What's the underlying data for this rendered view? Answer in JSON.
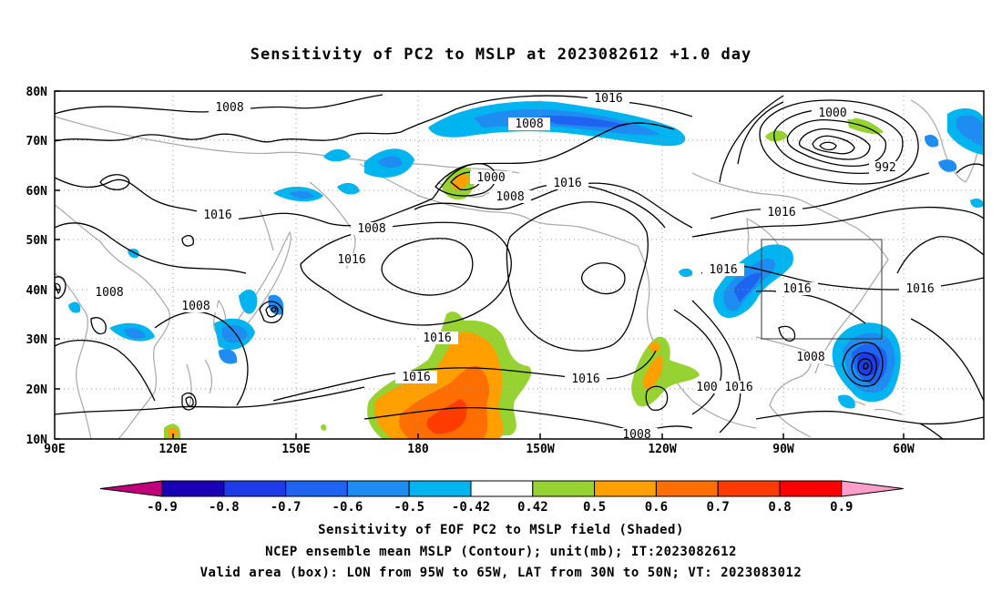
{
  "title": "Sensitivity of PC2 to MSLP at 2023082612 +1.0 day",
  "map": {
    "lat_labels": [
      "80N",
      "70N",
      "60N",
      "50N",
      "40N",
      "30N",
      "20N",
      "10N"
    ],
    "lon_labels": [
      "90E",
      "120E",
      "150E",
      "180",
      "150W",
      "120W",
      "90W",
      "60W"
    ],
    "contour_labels": [
      "1008",
      "1016",
      "1008",
      "1000",
      "1008",
      "1016",
      "1000",
      "992",
      "1016",
      "1008",
      "1016",
      "1016",
      "1016",
      "1016",
      "1008",
      "1008",
      "1016",
      "1016",
      "1016",
      "1016",
      "1008",
      "1008",
      "1016",
      "100"
    ],
    "valid_box": {
      "lon_west": "95W",
      "lon_east": "65W",
      "lat_south": "30N",
      "lat_north": "50N"
    }
  },
  "colorbar": {
    "labels": [
      "-0.9",
      "-0.8",
      "-0.7",
      "-0.6",
      "-0.5",
      "-0.42",
      "0.42",
      "0.5",
      "0.6",
      "0.7",
      "0.8",
      "0.9"
    ],
    "colors": [
      "#c0007a",
      "#1a00b4",
      "#1e3ce6",
      "#1e64f0",
      "#1e8cf0",
      "#00b4f0",
      "#ffffff",
      "#96d232",
      "#ffa000",
      "#ff6e00",
      "#ff3c00",
      "#ff0000",
      "#ff9ec8"
    ]
  },
  "captions": {
    "line1": "Sensitivity of EOF PC2 to MSLP field (Shaded)",
    "line2": "NCEP ensemble mean MSLP (Contour); unit(mb); IT:2023082612",
    "line3": "Valid area (box): LON from 95W to 65W, LAT from 30N to 50N; VT: 2023083012"
  }
}
